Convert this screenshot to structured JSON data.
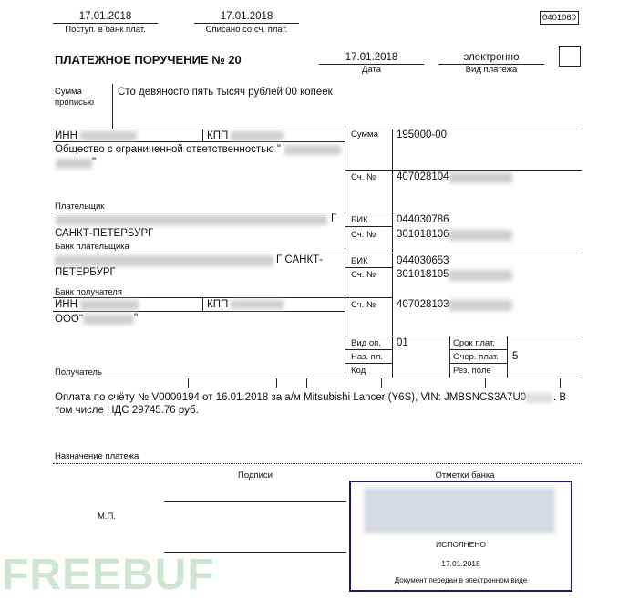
{
  "header": {
    "received_date": "17.01.2018",
    "received_label": "Поступ. в банк плат.",
    "debited_date": "17.01.2018",
    "debited_label": "Списано со сч. плат.",
    "form_code": "0401060"
  },
  "title": "ПЛАТЕЖНОЕ ПОРУЧЕНИЕ № 20",
  "date": {
    "value": "17.01.2018",
    "label": "Дата"
  },
  "payment_type": {
    "value": "электронно",
    "label": "Вид платежа"
  },
  "amount_words": {
    "label_1": "Сумма",
    "label_2": "прописью",
    "value": "Сто девяносто пять тысяч рублей 00 копеек"
  },
  "payer": {
    "inn_label": "ИНН",
    "kpp_label": "КПП",
    "name_1": "Общество с ограниченной ответственностью \"",
    "name_2": "\"",
    "label": "Плательщик"
  },
  "payer_bank": {
    "city_1": "Г",
    "city_2": "САНКТ-ПЕТЕРБУРГ",
    "label": "Банк плательщика"
  },
  "payee_bank": {
    "city_1": "Г САНКТ-",
    "city_2": "ПЕТЕРБУРГ",
    "label": "Банк получателя"
  },
  "payee": {
    "inn_label": "ИНН",
    "kpp_label": "КПП",
    "name_1": "ООО\"",
    "name_2": "\"",
    "label": "Получатель"
  },
  "right": {
    "sum_label": "Сумма",
    "sum_value": "195000-00",
    "acct_label": "Сч. №",
    "payer_acct": "407028104",
    "bik_label": "БИК",
    "payer_bik": "044030786",
    "payer_corr": "301018106",
    "payee_bik": "044030653",
    "payee_corr": "301018105",
    "payee_acct": "407028103",
    "vid_op_label": "Вид оп.",
    "vid_op_value": "01",
    "naz_label": "Наз. пл.",
    "kod_label": "Код",
    "srok_label": "Срок плат.",
    "ocher_label": "Очер. плат.",
    "ocher_value": "5",
    "rez_label": "Рез. поле"
  },
  "purpose": {
    "text": "Оплата по счёту № V0000194 от 16.01.2018 за а/м Mitsubishi Lancer (Y6S), VIN: JMBSNCS3A7U0",
    "text_end": ". В",
    "text_2": "том числе НДС 29745.76 руб.",
    "label": "Назначение платежа"
  },
  "signatures": {
    "label": "Подписи",
    "mp": "М.П."
  },
  "bank_marks": {
    "label": "Отметки банка",
    "status": "ИСПОЛНЕНО",
    "date": "17.01.2018",
    "note": "Документ передан в электронном виде"
  },
  "watermark": "FREEBUF",
  "colors": {
    "stamp_border": "#1a1a5e",
    "watermark": "#cfe5d3"
  }
}
